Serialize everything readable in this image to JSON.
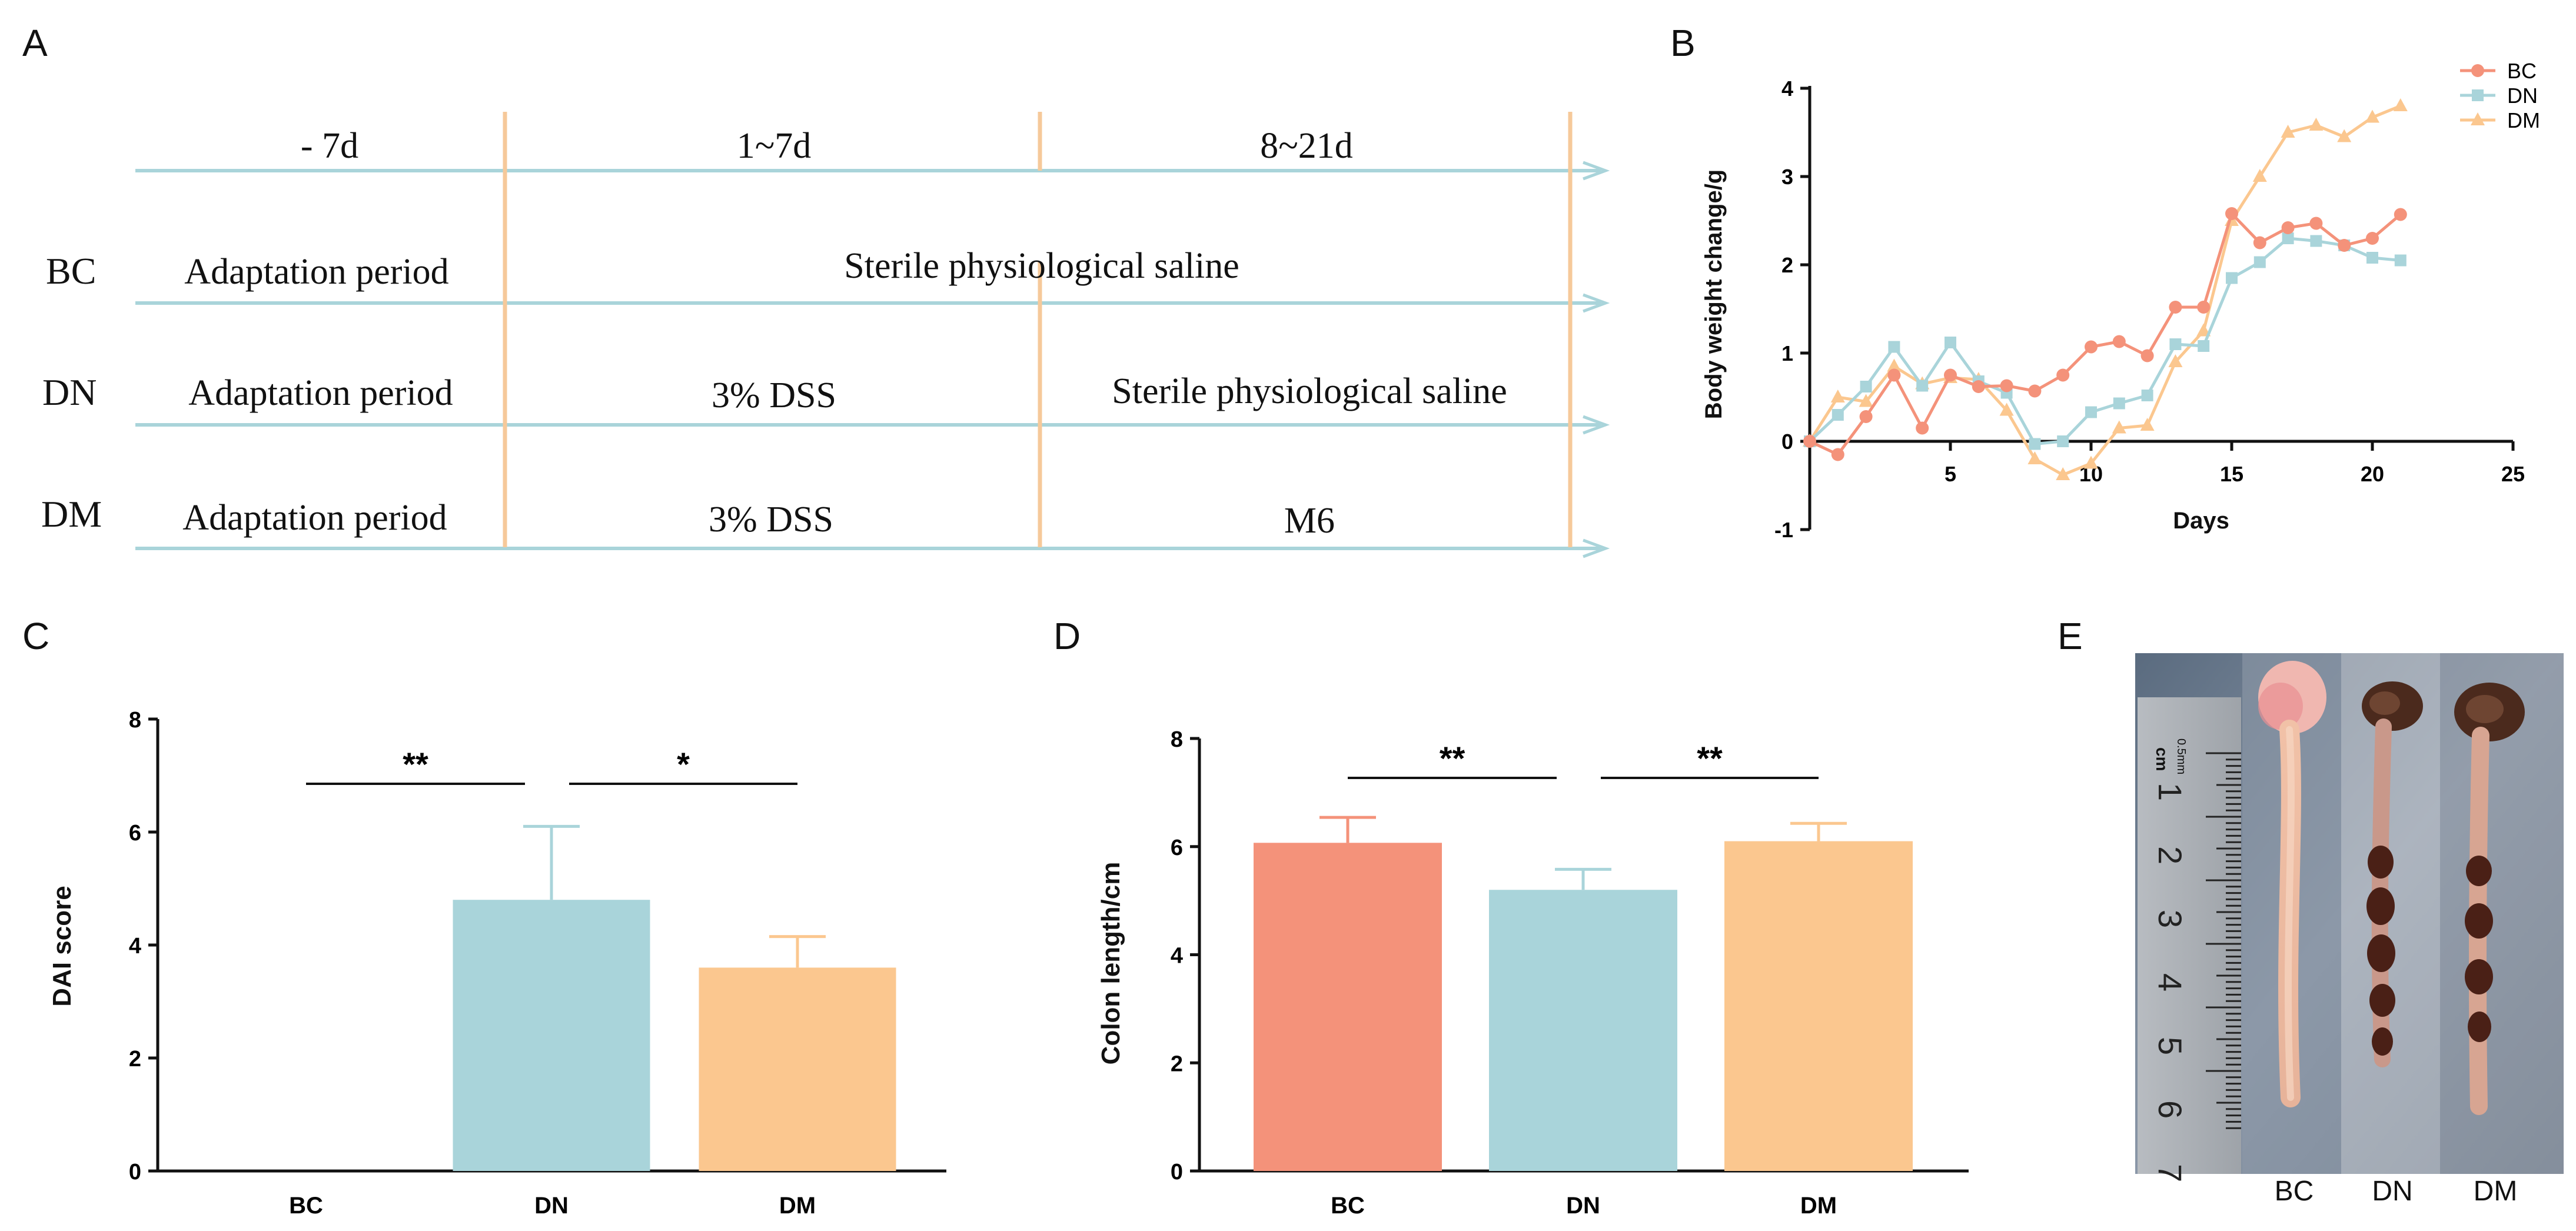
{
  "panels": {
    "A": "A",
    "B": "B",
    "C": "C",
    "D": "D",
    "E": "E"
  },
  "timeline": {
    "phases": [
      "- 7d",
      "1~7d",
      "8~21d"
    ],
    "rows": [
      {
        "group": "BC",
        "cells": [
          "Adaptation period",
          "Sterile physiological saline"
        ]
      },
      {
        "group": "DN",
        "cells": [
          "Adaptation period",
          "3% DSS",
          "Sterile physiological saline"
        ]
      },
      {
        "group": "DM",
        "cells": [
          "Adaptation period",
          "3% DSS",
          "M6"
        ]
      }
    ],
    "colors": {
      "arrow": "#a9d4da",
      "divider": "#f6c99a"
    }
  },
  "colors": {
    "BC": "#f4927a",
    "DN": "#a9d4da",
    "DM": "#fbc78f"
  },
  "chart_data": [
    {
      "id": "B",
      "type": "line",
      "xlabel": "Days",
      "ylabel": "Body weight change/g",
      "xlim": [
        0,
        25
      ],
      "ylim": [
        -1,
        4
      ],
      "xticks": [
        5,
        10,
        15,
        20,
        25
      ],
      "yticks": [
        -1,
        0,
        1,
        2,
        3,
        4
      ],
      "legend": "top-right",
      "x": [
        0,
        1,
        2,
        3,
        4,
        5,
        6,
        7,
        8,
        9,
        10,
        11,
        12,
        13,
        14,
        15,
        16,
        17,
        18,
        19,
        20,
        21
      ],
      "series": [
        {
          "name": "BC",
          "marker": "circle",
          "values": [
            0,
            -0.15,
            0.28,
            0.75,
            0.15,
            0.75,
            0.62,
            0.63,
            0.57,
            0.75,
            1.07,
            1.13,
            0.97,
            1.52,
            1.52,
            2.58,
            2.25,
            2.42,
            2.47,
            2.22,
            2.3,
            2.57
          ]
        },
        {
          "name": "DN",
          "marker": "square",
          "values": [
            0,
            0.3,
            0.62,
            1.07,
            0.63,
            1.12,
            0.68,
            0.55,
            -0.03,
            0,
            0.33,
            0.43,
            0.52,
            1.1,
            1.08,
            1.85,
            2.03,
            2.3,
            2.27,
            2.22,
            2.08,
            2.05
          ]
        },
        {
          "name": "DM",
          "marker": "triangle",
          "values": [
            0,
            0.5,
            0.45,
            0.85,
            0.65,
            0.72,
            0.7,
            0.35,
            -0.2,
            -0.38,
            -0.25,
            0.15,
            0.18,
            0.9,
            1.25,
            2.5,
            3.0,
            3.5,
            3.58,
            3.45,
            3.67,
            3.8
          ]
        }
      ]
    },
    {
      "id": "C",
      "type": "bar",
      "ylabel": "DAI score",
      "ylim": [
        0,
        8
      ],
      "yticks": [
        0,
        2,
        4,
        6,
        8
      ],
      "categories": [
        "BC",
        "DN",
        "DM"
      ],
      "values": [
        0,
        4.8,
        3.6
      ],
      "errors": [
        0,
        1.3,
        0.55
      ],
      "significance": [
        {
          "from": "BC",
          "to": "DN",
          "label": "**"
        },
        {
          "from": "DN",
          "to": "DM",
          "label": "*"
        }
      ]
    },
    {
      "id": "D",
      "type": "bar",
      "ylabel": "Colon length/cm",
      "ylim": [
        0,
        8
      ],
      "yticks": [
        0,
        2,
        4,
        6,
        8
      ],
      "categories": [
        "BC",
        "DN",
        "DM"
      ],
      "values": [
        6.07,
        5.2,
        6.1
      ],
      "errors": [
        0.47,
        0.38,
        0.33
      ],
      "significance": [
        {
          "from": "BC",
          "to": "DN",
          "label": "**"
        },
        {
          "from": "DN",
          "to": "DM",
          "label": "**"
        }
      ]
    }
  ],
  "photo": {
    "labels": [
      "BC",
      "DN",
      "DM"
    ],
    "ruler": {
      "unit": "cm",
      "sub": "0.5mm",
      "numbers": [
        "1",
        "2",
        "3",
        "4",
        "5",
        "6",
        "7"
      ]
    }
  }
}
